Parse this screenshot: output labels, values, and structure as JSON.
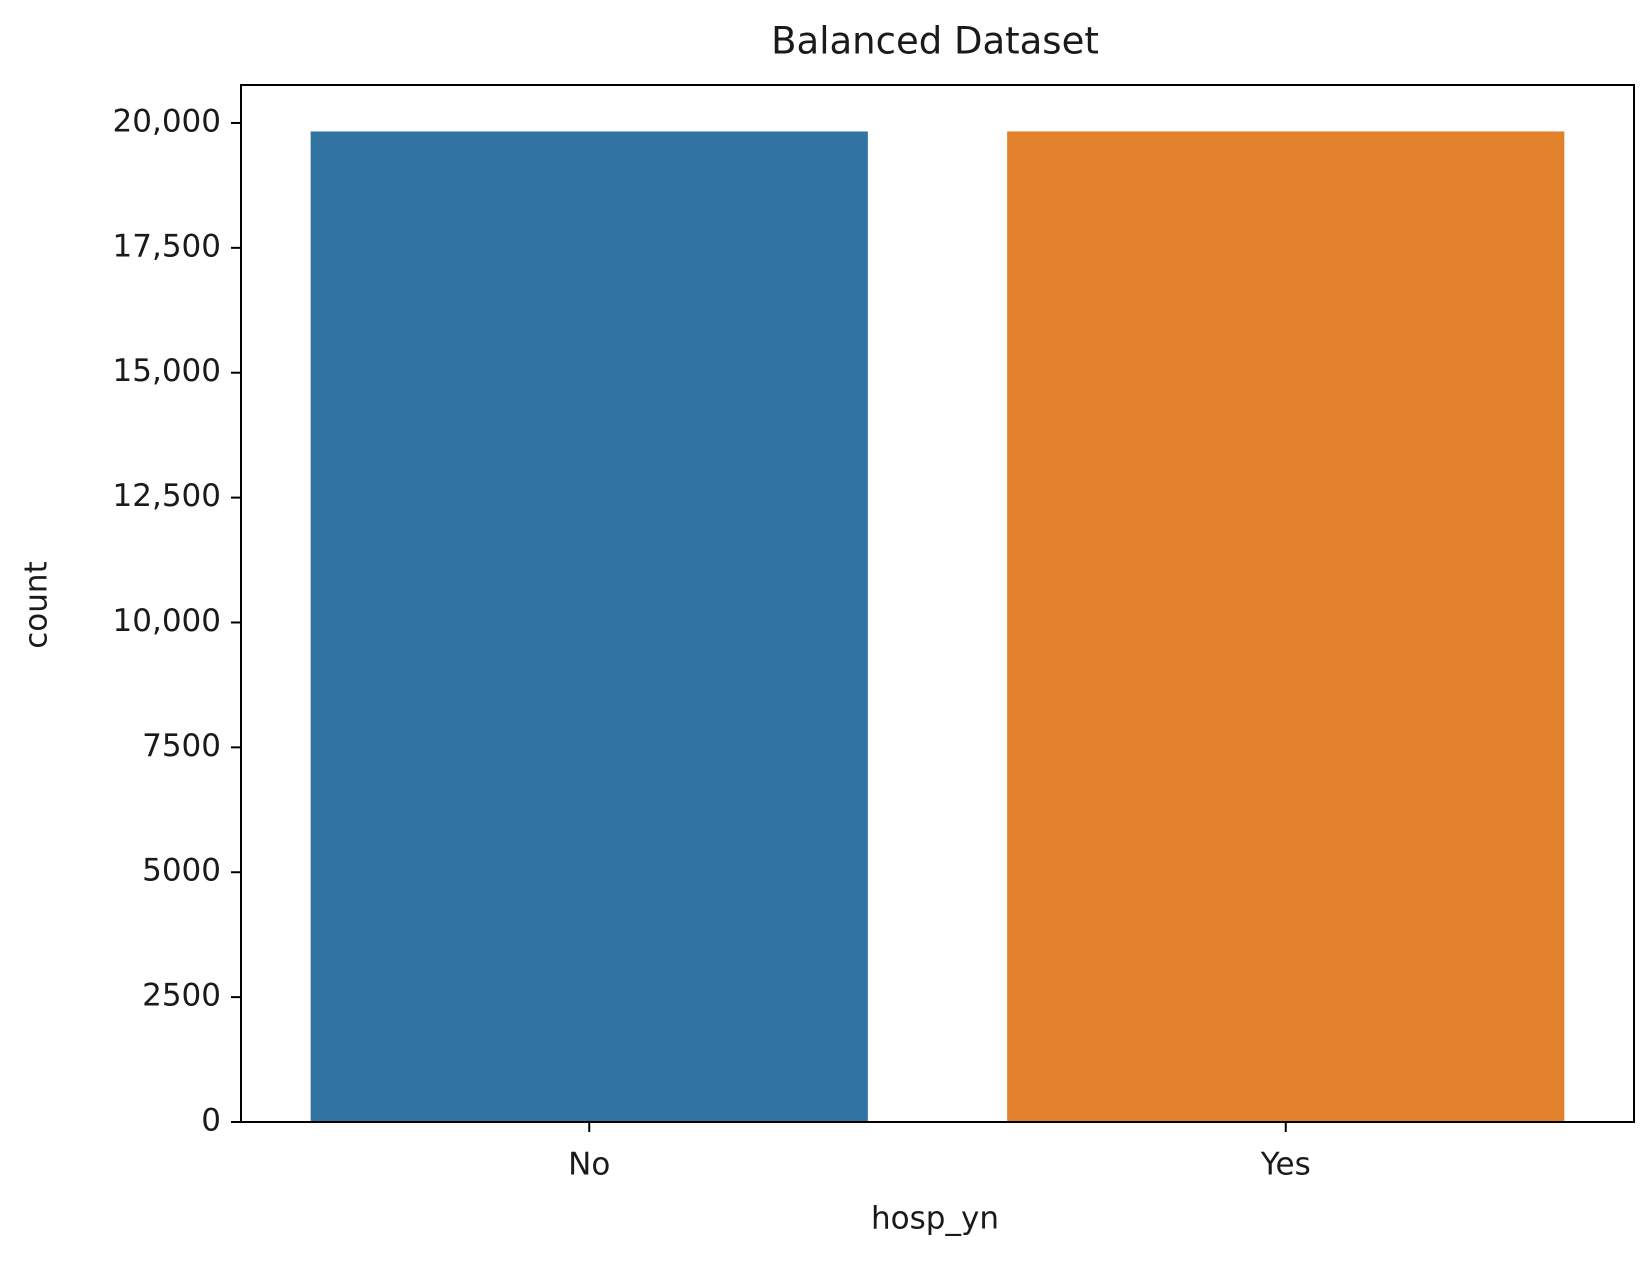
{
  "chart_data": {
    "type": "bar",
    "title": "Balanced Dataset",
    "x_label": "hosp_yn",
    "y_label": "count",
    "categories": [
      "No",
      "Yes"
    ],
    "values": [
      19830,
      19830
    ],
    "colors": [
      "#3274a1",
      "#e1812c"
    ],
    "ylim": [
      0,
      20760
    ],
    "yticks": [
      0,
      2500,
      5000,
      7500,
      {
        "value": 10000,
        "label": "10,000"
      },
      {
        "value": 12500,
        "label": "12,500"
      },
      {
        "value": 15000,
        "label": "15,000"
      },
      {
        "value": 17500,
        "label": "17,500"
      },
      {
        "value": 20000,
        "label": "20,000"
      }
    ],
    "grid": false
  }
}
